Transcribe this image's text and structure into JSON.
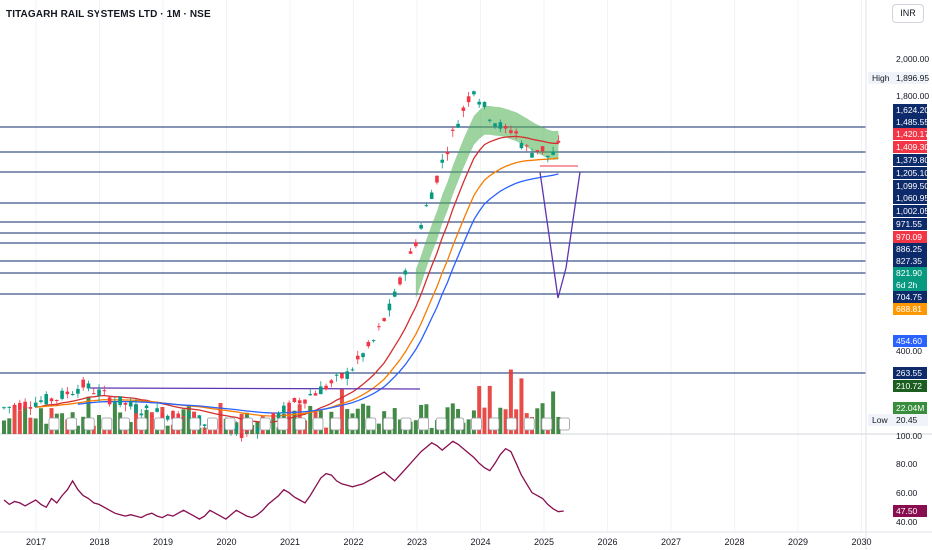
{
  "header": {
    "title": "TITAGARH RAIL SYSTEMS LTD · 1M · NSE",
    "currency": "INR"
  },
  "chart_data": {
    "type": "candlestick",
    "xaxis_labels": [
      "2017",
      "2018",
      "2019",
      "2020",
      "2021",
      "2022",
      "2023",
      "2024",
      "2025",
      "2026",
      "2027",
      "2028",
      "2029",
      "2030"
    ],
    "price_axis_ticks": [
      "2,000.00",
      "1,800.00",
      "400.00"
    ],
    "rsi_axis_ticks": [
      "100.00",
      "80.00",
      "60.00",
      "40.00"
    ],
    "high_label": "High",
    "high_value": "1,896.95",
    "low_label": "Low",
    "low_value": "20.45",
    "price_labels": [
      {
        "text": "1,624.20",
        "color": "#0d2a6b"
      },
      {
        "text": "1,485.55",
        "color": "#0d2a6b"
      },
      {
        "text": "1,420.17",
        "color": "#f23645"
      },
      {
        "text": "1,409.30",
        "color": "#f23645"
      },
      {
        "text": "1,379.80",
        "color": "#0d2a6b"
      },
      {
        "text": "1,205.10",
        "color": "#0d2a6b"
      },
      {
        "text": "1,099.50",
        "color": "#0d2a6b"
      },
      {
        "text": "1,060.95",
        "color": "#0d2a6b"
      },
      {
        "text": "1,002.05",
        "color": "#0d2a6b"
      },
      {
        "text": "971.55",
        "color": "#0d2a6b"
      },
      {
        "text": "970.09",
        "color": "#f23645"
      },
      {
        "text": "886.25",
        "color": "#0d2a6b"
      },
      {
        "text": "827.35",
        "color": "#0d2a6b"
      },
      {
        "text": "821.90",
        "color": "#089981"
      },
      {
        "text": "6d 2h",
        "color": "#089981"
      },
      {
        "text": "704.75",
        "color": "#0d2a6b"
      },
      {
        "text": "688.81",
        "color": "#ff9800"
      },
      {
        "text": "454.60",
        "color": "#2962ff"
      },
      {
        "text": "263.55",
        "color": "#0d2a6b"
      },
      {
        "text": "210.72",
        "color": "#1b5e20"
      },
      {
        "text": "22.04M",
        "color": "#388e3c"
      }
    ],
    "last_close": 821.9,
    "volume_last": "22.04M",
    "rsi_last": "47.50",
    "rsi_values": [
      55,
      52,
      54,
      53,
      51,
      53,
      55,
      52,
      50,
      56,
      53,
      58,
      62,
      68,
      62,
      58,
      56,
      53,
      52,
      50,
      48,
      46,
      45,
      44,
      45,
      44,
      43,
      45,
      46,
      44,
      43,
      45,
      44,
      46,
      48,
      46,
      44,
      42,
      44,
      48,
      46,
      44,
      42,
      45,
      48,
      46,
      44,
      43,
      45,
      48,
      52,
      55,
      58,
      62,
      60,
      57,
      55,
      53,
      58,
      64,
      70,
      73,
      72,
      68,
      66,
      65,
      64,
      65,
      66,
      68,
      70,
      72,
      74,
      71,
      68,
      72,
      76,
      80,
      84,
      88,
      91,
      94,
      92,
      89,
      92,
      95,
      93,
      90,
      87,
      84,
      80,
      77,
      75,
      80,
      86,
      90,
      88,
      80,
      72,
      66,
      60,
      58,
      56,
      52,
      49,
      47,
      47.5
    ],
    "colors": {
      "up": "#089981",
      "down": "#f23645",
      "upVol": "#2e7d32",
      "downVol": "#e53935",
      "ema_red": "#d32f2f",
      "ema_orange": "#f57c00",
      "ema_blue": "#2962ff",
      "rsi": "#880e4f",
      "band": "#4caf50",
      "hline": "#0d2a6b",
      "projection": "#5e35b1"
    }
  }
}
